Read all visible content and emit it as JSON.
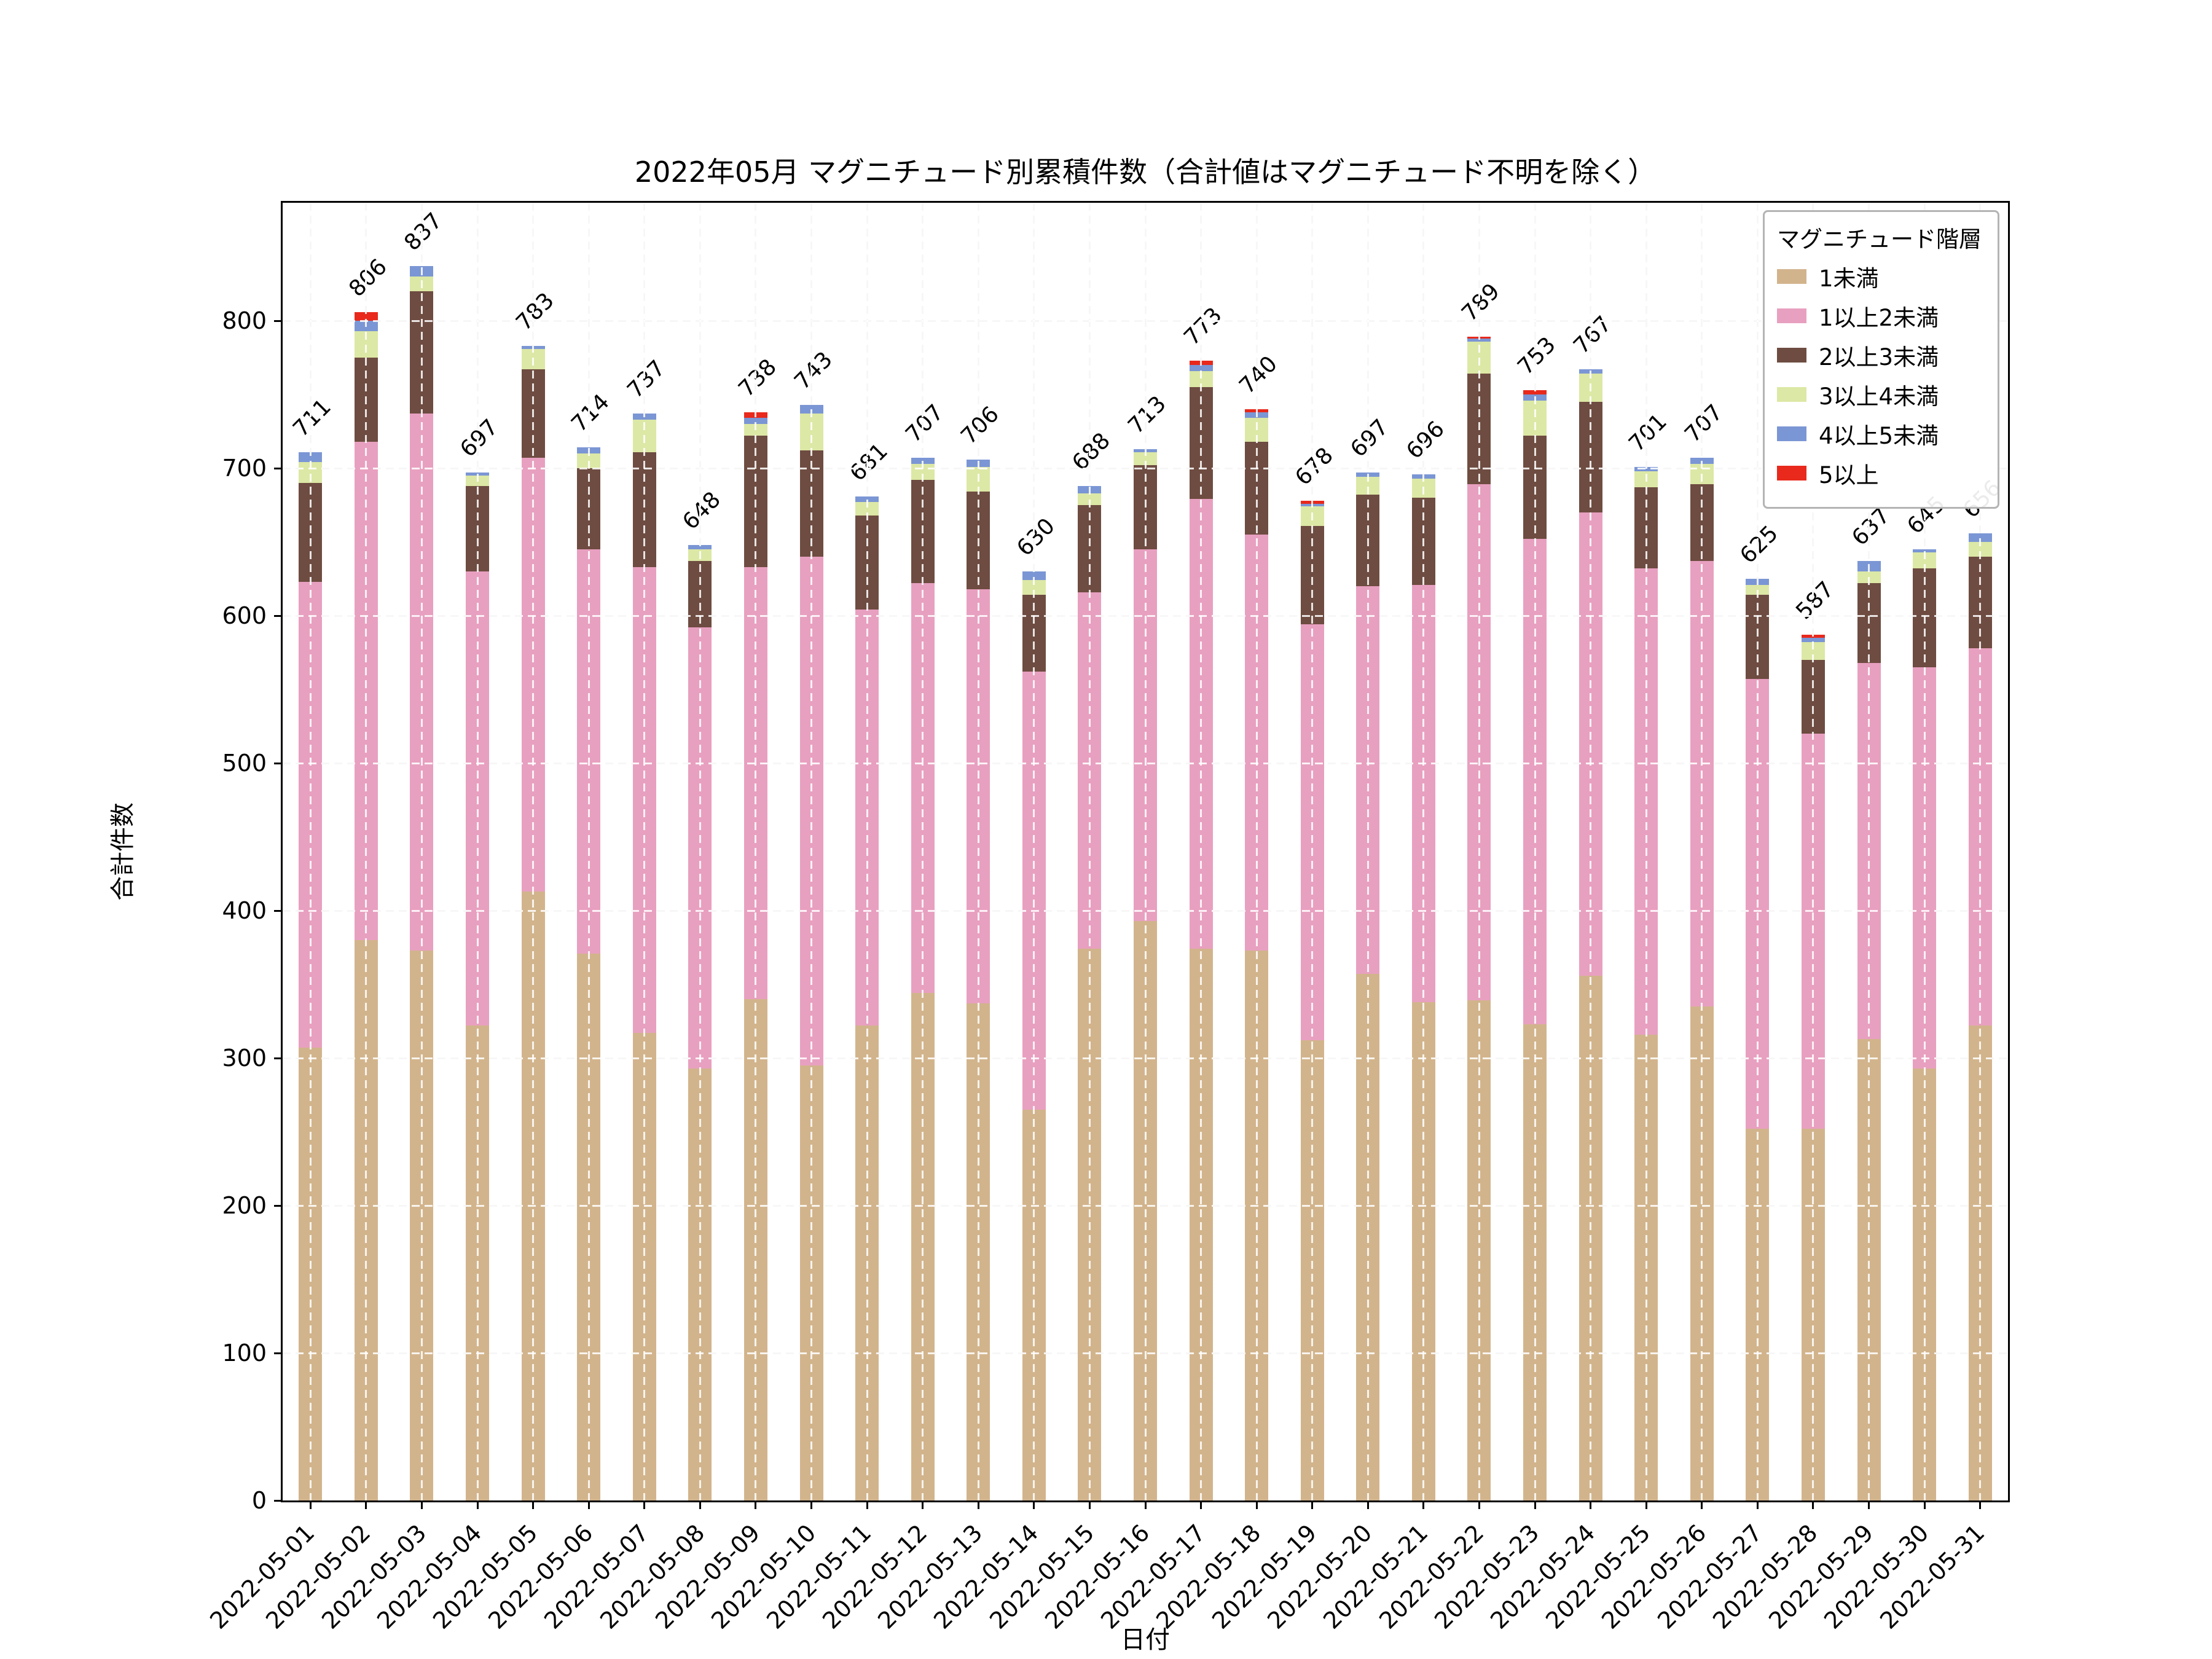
{
  "chart_data": {
    "type": "bar",
    "stacked": true,
    "title": "2022年05月 マグニチュード別累積件数（合計値はマグニチュード不明を除く）",
    "xlabel": "日付",
    "ylabel": "合計件数",
    "legend_title": "マグニチュード階層",
    "legend_position": "upper right",
    "grid": true,
    "ylim": [
      0,
      880
    ],
    "yticks": [
      0,
      100,
      200,
      300,
      400,
      500,
      600,
      700,
      800
    ],
    "categories": [
      "2022-05-01",
      "2022-05-02",
      "2022-05-03",
      "2022-05-04",
      "2022-05-05",
      "2022-05-06",
      "2022-05-07",
      "2022-05-08",
      "2022-05-09",
      "2022-05-10",
      "2022-05-11",
      "2022-05-12",
      "2022-05-13",
      "2022-05-14",
      "2022-05-15",
      "2022-05-16",
      "2022-05-17",
      "2022-05-18",
      "2022-05-19",
      "2022-05-20",
      "2022-05-21",
      "2022-05-22",
      "2022-05-23",
      "2022-05-24",
      "2022-05-25",
      "2022-05-26",
      "2022-05-27",
      "2022-05-28",
      "2022-05-29",
      "2022-05-30",
      "2022-05-31"
    ],
    "totals": [
      711,
      806,
      837,
      697,
      783,
      714,
      737,
      648,
      738,
      743,
      681,
      707,
      706,
      630,
      688,
      713,
      773,
      740,
      678,
      697,
      696,
      789,
      753,
      767,
      701,
      707,
      625,
      587,
      637,
      645,
      656
    ],
    "series": [
      {
        "name": "1未満",
        "color": "#d2b48c",
        "values": [
          307,
          380,
          373,
          322,
          413,
          371,
          317,
          293,
          340,
          295,
          322,
          344,
          337,
          265,
          374,
          393,
          374,
          373,
          312,
          357,
          338,
          339,
          323,
          356,
          316,
          335,
          252,
          252,
          313,
          293,
          322
        ]
      },
      {
        "name": "1以上2未満",
        "color": "#e8a0c0",
        "values": [
          316,
          338,
          364,
          308,
          294,
          274,
          316,
          299,
          293,
          345,
          282,
          278,
          281,
          297,
          242,
          252,
          305,
          282,
          282,
          263,
          283,
          350,
          329,
          314,
          316,
          302,
          305,
          268,
          255,
          272,
          256
        ]
      },
      {
        "name": "2以上3未満",
        "color": "#6e4c41",
        "values": [
          67,
          57,
          83,
          58,
          60,
          55,
          78,
          45,
          89,
          72,
          64,
          70,
          66,
          52,
          59,
          57,
          76,
          63,
          67,
          62,
          59,
          75,
          70,
          75,
          55,
          52,
          57,
          50,
          54,
          67,
          62
        ]
      },
      {
        "name": "3以上4未満",
        "color": "#dce8a5",
        "values": [
          14,
          18,
          10,
          7,
          14,
          10,
          22,
          8,
          8,
          25,
          9,
          11,
          17,
          10,
          8,
          9,
          11,
          16,
          13,
          12,
          13,
          22,
          24,
          19,
          11,
          14,
          7,
          12,
          8,
          11,
          10
        ]
      },
      {
        "name": "4以上5未満",
        "color": "#7b96d4",
        "values": [
          7,
          7,
          7,
          2,
          2,
          4,
          4,
          3,
          4,
          6,
          4,
          4,
          5,
          6,
          5,
          2,
          4,
          4,
          2,
          3,
          3,
          2,
          4,
          3,
          3,
          4,
          4,
          3,
          7,
          2,
          6
        ]
      },
      {
        "name": "5以上",
        "color": "#e8291c",
        "values": [
          0,
          6,
          0,
          0,
          0,
          0,
          0,
          0,
          4,
          0,
          0,
          0,
          0,
          0,
          0,
          0,
          3,
          2,
          2,
          0,
          0,
          1,
          3,
          0,
          0,
          0,
          0,
          2,
          0,
          0,
          0
        ]
      }
    ]
  }
}
